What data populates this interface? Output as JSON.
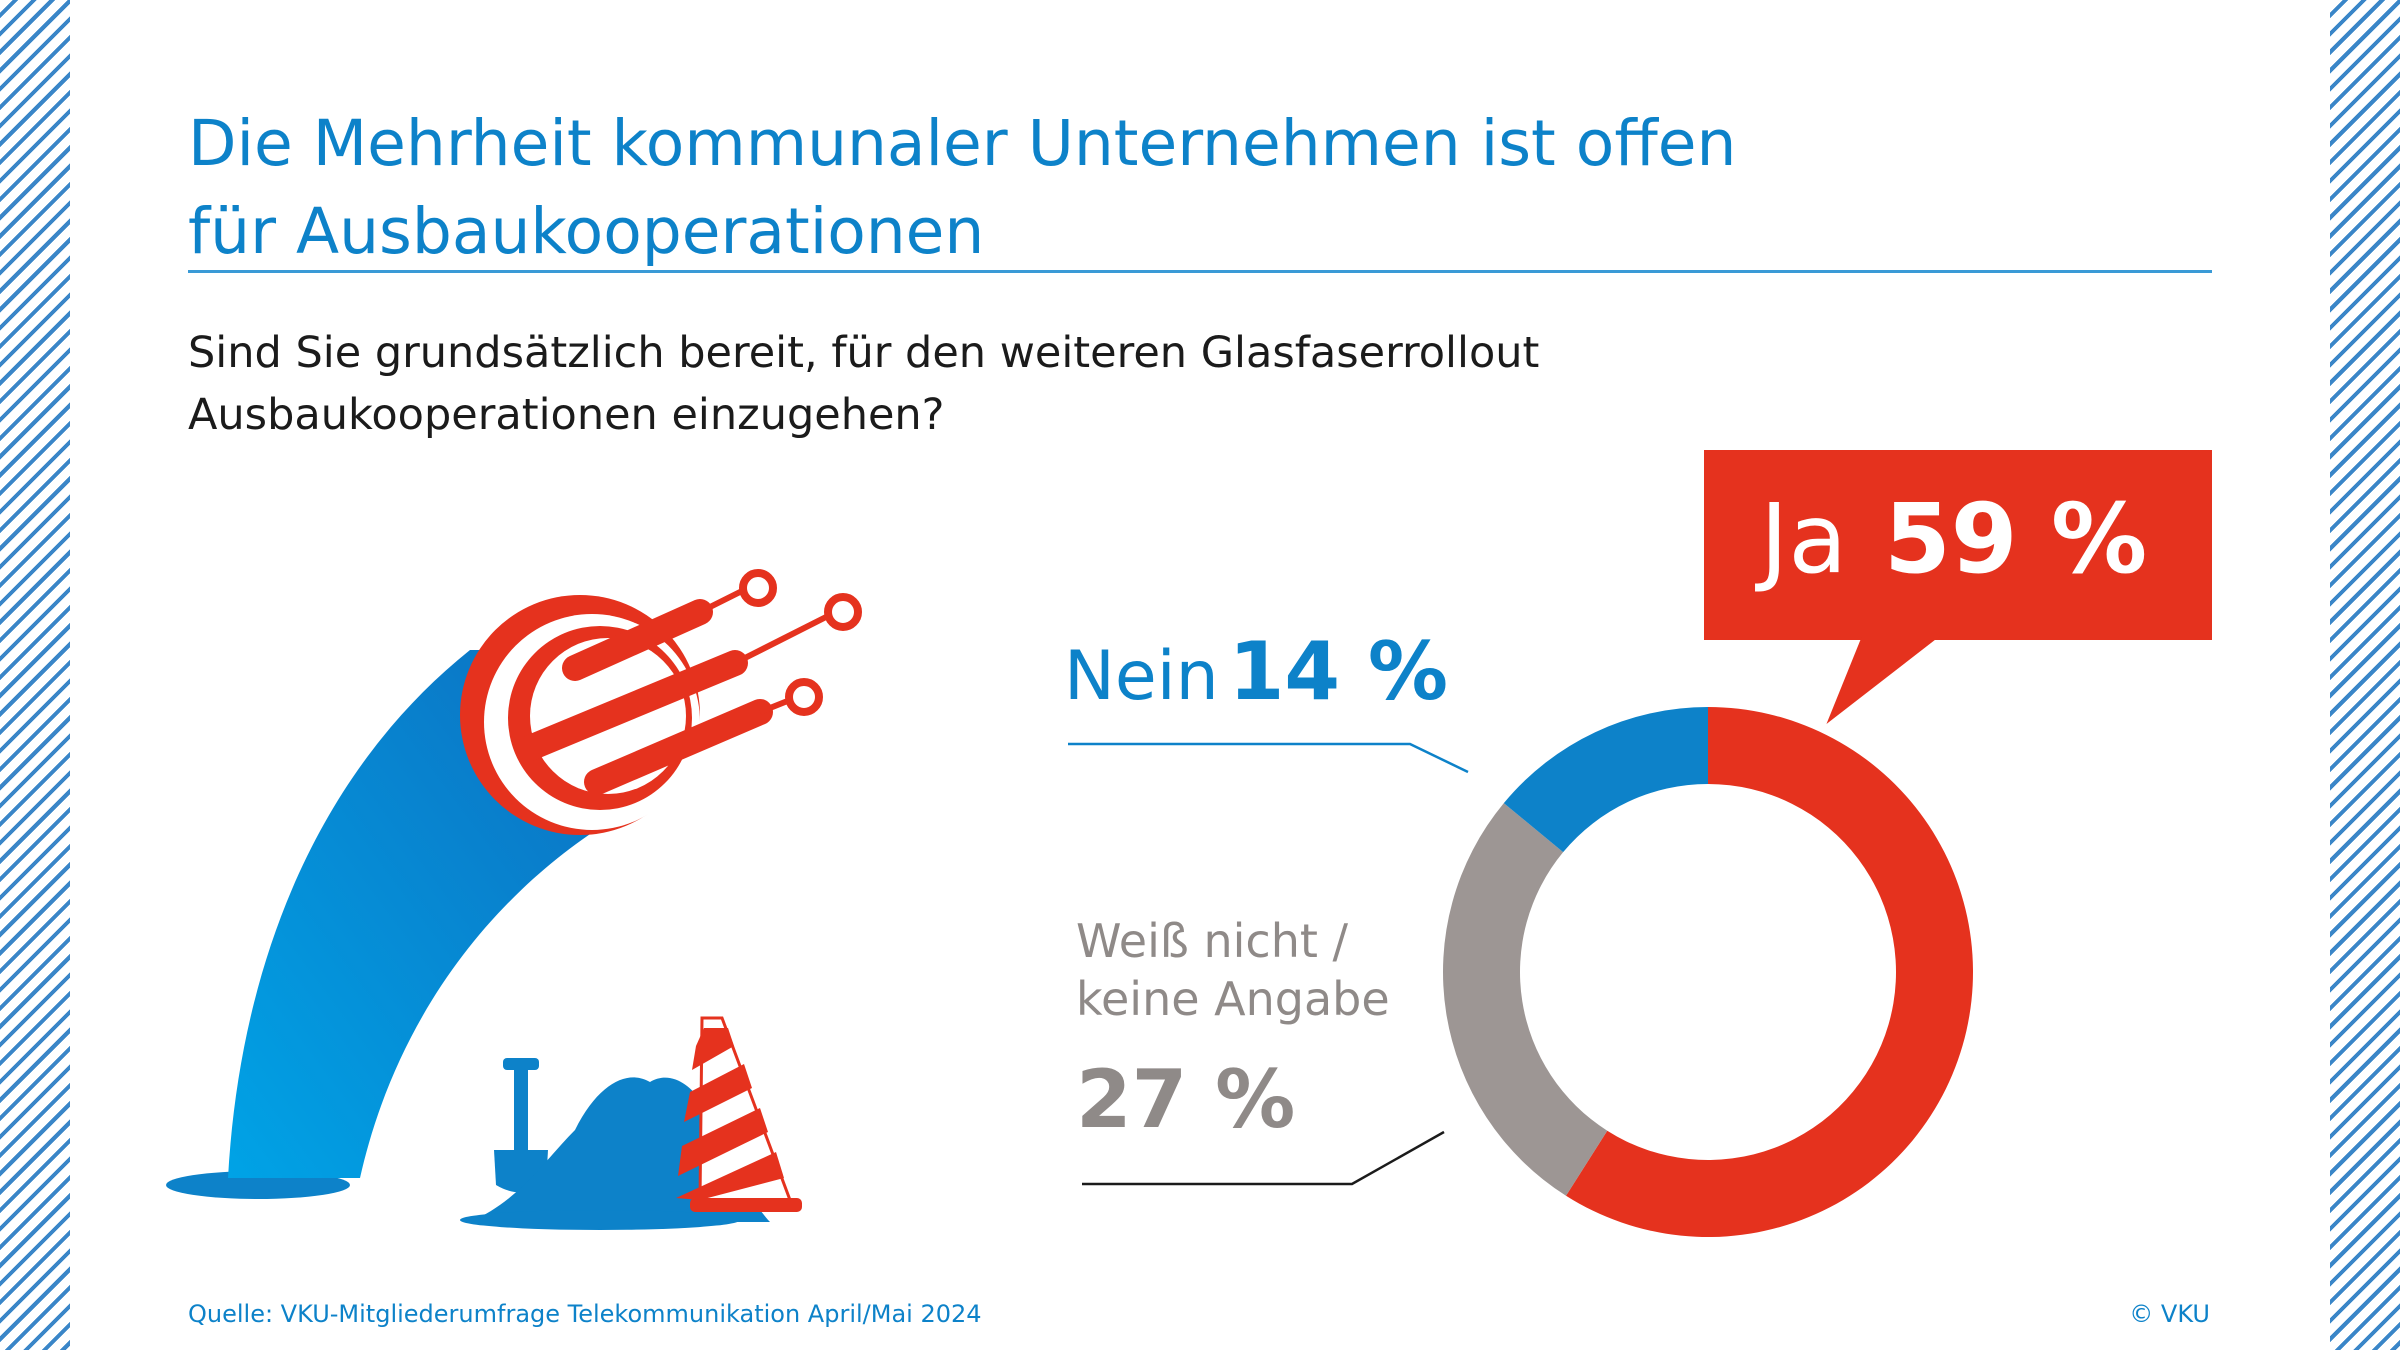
{
  "header": {
    "title_line1": "Die Mehrheit kommunaler Unternehmen ist offen",
    "title_line2": "für Ausbaukooperationen"
  },
  "question": {
    "line1": "Sind Sie grundsätzlich bereit, für den weiteren Glasfaserrollout",
    "line2": "Ausbaukooperationen einzugehen?"
  },
  "labels": {
    "ja_word": "Ja",
    "ja_value": "59 %",
    "nein_word": "Nein",
    "nein_value": "14 %",
    "weiss_line1": "Weiß nicht /",
    "weiss_line2": "keine Angabe",
    "weiss_value": "27 %"
  },
  "footer": {
    "source": "Quelle: VKU-Mitgliederumfrage Telekommunikation April/Mai 2024",
    "copyright": "© VKU"
  },
  "colors": {
    "ja": "#e5321e",
    "nein": "#0d82c9",
    "weiss": "#9d9694",
    "accent": "#0d82c9"
  },
  "icons": [
    "fiber-optic-cable-icon",
    "shovel-icon",
    "dirt-pile-icon",
    "traffic-cone-icon"
  ],
  "chart_data": {
    "type": "pie",
    "categories": [
      "Ja",
      "Nein",
      "Weiß nicht / keine Angabe"
    ],
    "values": [
      59,
      14,
      27
    ],
    "colors": [
      "#e5321e",
      "#0d82c9",
      "#9d9694"
    ]
  }
}
